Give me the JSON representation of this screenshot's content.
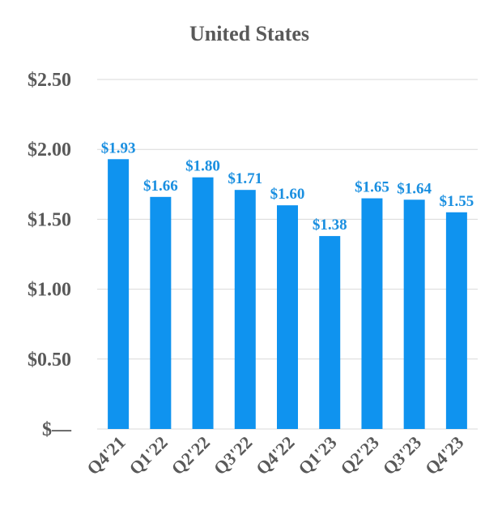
{
  "chart_data": {
    "type": "bar",
    "title": "United States",
    "xlabel": "",
    "ylabel": "",
    "categories": [
      "Q4'21",
      "Q1'22",
      "Q2'22",
      "Q3'22",
      "Q4'22",
      "Q1'23",
      "Q2'23",
      "Q3'23",
      "Q4'23"
    ],
    "values": [
      1.93,
      1.66,
      1.8,
      1.71,
      1.6,
      1.38,
      1.65,
      1.64,
      1.55
    ],
    "data_labels": [
      "$1.93",
      "$1.66",
      "$1.80",
      "$1.71",
      "$1.60",
      "$1.38",
      "$1.65",
      "$1.64",
      "$1.55"
    ],
    "ylim": [
      0,
      2.5
    ],
    "y_ticks": [
      0,
      0.5,
      1.0,
      1.5,
      2.0,
      2.5
    ],
    "y_tick_labels": [
      "$—",
      "$0.50",
      "$1.00",
      "$1.50",
      "$2.00",
      "$2.50"
    ],
    "grid": true,
    "legend": "none",
    "colors": {
      "bar": "#0f93ef",
      "data_label": "#1a8fe0",
      "text": "#595959",
      "grid": "#d9d9d9"
    }
  }
}
